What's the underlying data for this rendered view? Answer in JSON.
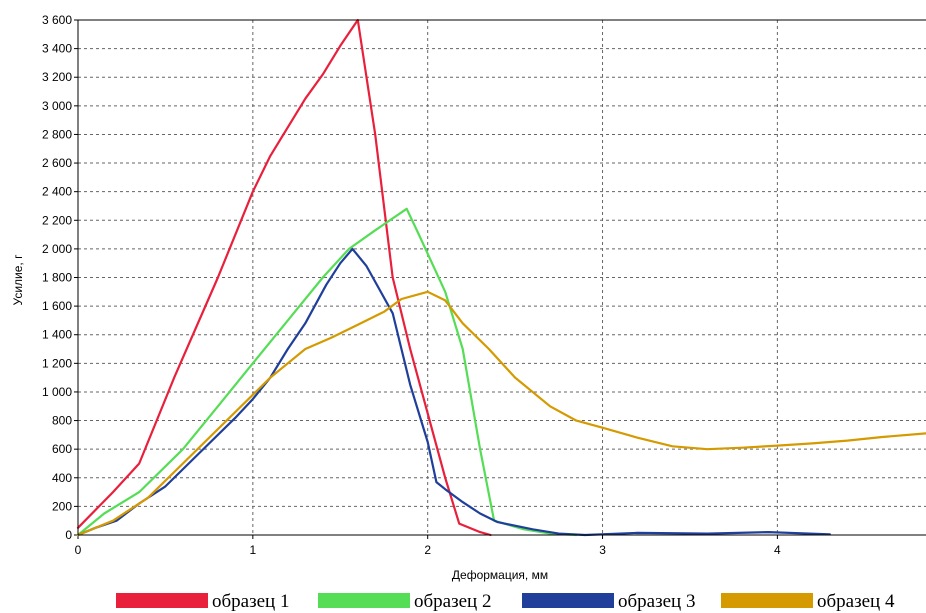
{
  "chart_data": {
    "type": "line",
    "title": "",
    "xlabel": "Деформация, мм",
    "ylabel": "Усилие, г",
    "xlim": [
      0,
      4.85
    ],
    "ylim": [
      0,
      3600
    ],
    "xticks": [
      0,
      1,
      2,
      3,
      4
    ],
    "xtick_labels": [
      "0",
      "1",
      "2",
      "3",
      "4"
    ],
    "yticks": [
      0,
      200,
      400,
      600,
      800,
      1000,
      1200,
      1400,
      1600,
      1800,
      2000,
      2200,
      2400,
      2600,
      2800,
      3000,
      3200,
      3400,
      3600
    ],
    "ytick_labels": [
      "0",
      "200",
      "400",
      "600",
      "800",
      "1 000",
      "1 200",
      "1 400",
      "1 600",
      "1 800",
      "2 000",
      "2 200",
      "2 400",
      "2 600",
      "2 800",
      "3 000",
      "3 200",
      "3 400",
      "3 600"
    ],
    "grid": true,
    "legend_position": "bottom",
    "series": [
      {
        "name": "образец 1",
        "color": "#e8203c",
        "points": [
          [
            0,
            50
          ],
          [
            0.2,
            300
          ],
          [
            0.35,
            500
          ],
          [
            0.55,
            1100
          ],
          [
            0.8,
            1800
          ],
          [
            1.0,
            2400
          ],
          [
            1.1,
            2650
          ],
          [
            1.2,
            2850
          ],
          [
            1.3,
            3050
          ],
          [
            1.4,
            3220
          ],
          [
            1.5,
            3420
          ],
          [
            1.6,
            3600
          ],
          [
            1.7,
            2800
          ],
          [
            1.8,
            1800
          ],
          [
            1.9,
            1300
          ],
          [
            2.0,
            850
          ],
          [
            2.1,
            400
          ],
          [
            2.18,
            80
          ],
          [
            2.3,
            20
          ],
          [
            2.36,
            0
          ]
        ]
      },
      {
        "name": "образец 2",
        "color": "#55dd55",
        "points": [
          [
            0,
            0
          ],
          [
            0.15,
            150
          ],
          [
            0.35,
            300
          ],
          [
            0.6,
            600
          ],
          [
            0.8,
            900
          ],
          [
            1.0,
            1200
          ],
          [
            1.2,
            1500
          ],
          [
            1.4,
            1800
          ],
          [
            1.55,
            2000
          ],
          [
            1.7,
            2130
          ],
          [
            1.88,
            2280
          ],
          [
            1.95,
            2100
          ],
          [
            2.1,
            1700
          ],
          [
            2.2,
            1300
          ],
          [
            2.3,
            600
          ],
          [
            2.38,
            100
          ],
          [
            2.55,
            40
          ],
          [
            2.7,
            10
          ],
          [
            2.85,
            0
          ]
        ]
      },
      {
        "name": "образец 3",
        "color": "#1f3f9a",
        "points": [
          [
            0,
            0
          ],
          [
            0.1,
            50
          ],
          [
            0.22,
            100
          ],
          [
            0.35,
            220
          ],
          [
            0.5,
            340
          ],
          [
            0.7,
            580
          ],
          [
            0.9,
            820
          ],
          [
            1.0,
            950
          ],
          [
            1.1,
            1100
          ],
          [
            1.2,
            1300
          ],
          [
            1.3,
            1480
          ],
          [
            1.42,
            1750
          ],
          [
            1.5,
            1900
          ],
          [
            1.57,
            2000
          ],
          [
            1.65,
            1880
          ],
          [
            1.8,
            1550
          ],
          [
            1.9,
            1050
          ],
          [
            2.0,
            650
          ],
          [
            2.05,
            370
          ],
          [
            2.1,
            320
          ],
          [
            2.2,
            230
          ],
          [
            2.3,
            150
          ],
          [
            2.4,
            90
          ],
          [
            2.6,
            40
          ],
          [
            2.75,
            10
          ],
          [
            2.9,
            0
          ],
          [
            3.2,
            15
          ],
          [
            3.6,
            10
          ],
          [
            3.95,
            20
          ],
          [
            4.3,
            5
          ]
        ]
      },
      {
        "name": "образец 4",
        "color": "#d49a00",
        "points": [
          [
            0,
            0
          ],
          [
            0.2,
            100
          ],
          [
            0.4,
            260
          ],
          [
            0.6,
            500
          ],
          [
            0.8,
            740
          ],
          [
            1.0,
            980
          ],
          [
            1.1,
            1100
          ],
          [
            1.2,
            1200
          ],
          [
            1.3,
            1300
          ],
          [
            1.45,
            1380
          ],
          [
            1.6,
            1470
          ],
          [
            1.75,
            1560
          ],
          [
            1.85,
            1650
          ],
          [
            2.0,
            1700
          ],
          [
            2.1,
            1640
          ],
          [
            2.2,
            1480
          ],
          [
            2.35,
            1300
          ],
          [
            2.5,
            1100
          ],
          [
            2.7,
            900
          ],
          [
            2.85,
            800
          ],
          [
            3.0,
            750
          ],
          [
            3.2,
            680
          ],
          [
            3.4,
            620
          ],
          [
            3.6,
            600
          ],
          [
            3.8,
            610
          ],
          [
            4.0,
            625
          ],
          [
            4.2,
            640
          ],
          [
            4.4,
            660
          ],
          [
            4.6,
            685
          ],
          [
            4.85,
            710
          ]
        ]
      }
    ]
  }
}
